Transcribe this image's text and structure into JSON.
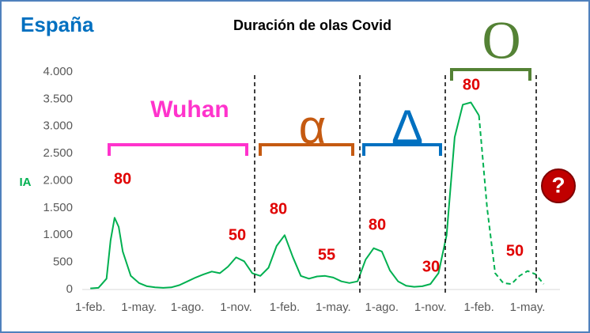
{
  "country": "España",
  "chart_data": {
    "type": "line",
    "title": "Duración de olas Covid",
    "y_label": "IA",
    "x": [
      0,
      0.5,
      1,
      1.25,
      1.5,
      1.75,
      2,
      2.5,
      3,
      3.5,
      4,
      4.5,
      5,
      5.5,
      6,
      6.5,
      7,
      7.5,
      8,
      8.5,
      9,
      9.5,
      10,
      10.5,
      11,
      11.5,
      12,
      12.5,
      13,
      13.5,
      14,
      14.5,
      15,
      15.5,
      16,
      16.5,
      17,
      17.5,
      18,
      18.5,
      19,
      19.5,
      20,
      20.5,
      21,
      21.5,
      22,
      22.5,
      23,
      23.5,
      24,
      24.5,
      25,
      25.5,
      26,
      26.5,
      27,
      27.5,
      28
    ],
    "series": [
      {
        "color": "#00b050",
        "dashed": false,
        "values": [
          20,
          30,
          200,
          900,
          1320,
          1150,
          700,
          250,
          120,
          60,
          40,
          30,
          40,
          80,
          150,
          220,
          280,
          330,
          300,
          420,
          590,
          520,
          300,
          250,
          400,
          800,
          1000,
          600,
          250,
          200,
          240,
          250,
          220,
          150,
          120,
          150,
          550,
          760,
          700,
          350,
          150,
          70,
          50,
          60,
          100,
          300,
          1000,
          2800,
          3400,
          3440,
          3200,
          null,
          null,
          null,
          null,
          null,
          null,
          null,
          null
        ]
      },
      {
        "color": "#00b050",
        "dashed": true,
        "values": [
          null,
          null,
          null,
          null,
          null,
          null,
          null,
          null,
          null,
          null,
          null,
          null,
          null,
          null,
          null,
          null,
          null,
          null,
          null,
          null,
          null,
          null,
          null,
          null,
          null,
          null,
          null,
          null,
          null,
          null,
          null,
          null,
          null,
          null,
          null,
          null,
          null,
          null,
          null,
          null,
          null,
          null,
          null,
          null,
          null,
          null,
          null,
          null,
          null,
          null,
          3200,
          1500,
          300,
          120,
          100,
          250,
          340,
          280,
          100
        ]
      }
    ],
    "xlim": [
      -0.5,
      29
    ],
    "xticks": [
      {
        "value": 0,
        "label": "1-feb."
      },
      {
        "value": 3,
        "label": "1-may."
      },
      {
        "value": 6,
        "label": "1-ago."
      },
      {
        "value": 9,
        "label": "1-nov."
      },
      {
        "value": 12,
        "label": "1-feb."
      },
      {
        "value": 15,
        "label": "1-may."
      },
      {
        "value": 18,
        "label": "1-ago."
      },
      {
        "value": 21,
        "label": "1-nov."
      },
      {
        "value": 24,
        "label": "1-feb."
      },
      {
        "value": 27,
        "label": "1-may."
      }
    ],
    "ylim": [
      0,
      4000
    ],
    "yticks": [
      {
        "value": 0,
        "label": "0"
      },
      {
        "value": 500,
        "label": "500"
      },
      {
        "value": 1000,
        "label": "1.000"
      },
      {
        "value": 1500,
        "label": "1.500"
      },
      {
        "value": 2000,
        "label": "2.000"
      },
      {
        "value": 2500,
        "label": "2.500"
      },
      {
        "value": 3000,
        "label": "3.000"
      },
      {
        "value": 3500,
        "label": "3.500"
      },
      {
        "value": 4000,
        "label": "4.000"
      }
    ],
    "waves": [
      {
        "name": "Wuhan",
        "color": "#ff33cc",
        "durations": [
          80,
          50
        ]
      },
      {
        "name": "α",
        "color": "#c55a11",
        "durations": [
          80,
          55
        ]
      },
      {
        "name": "Δ",
        "color": "#0070c0",
        "durations": [
          80,
          30
        ]
      },
      {
        "name": "O",
        "color": "#548235",
        "durations": [
          80,
          50
        ]
      }
    ],
    "unknown": "?"
  }
}
